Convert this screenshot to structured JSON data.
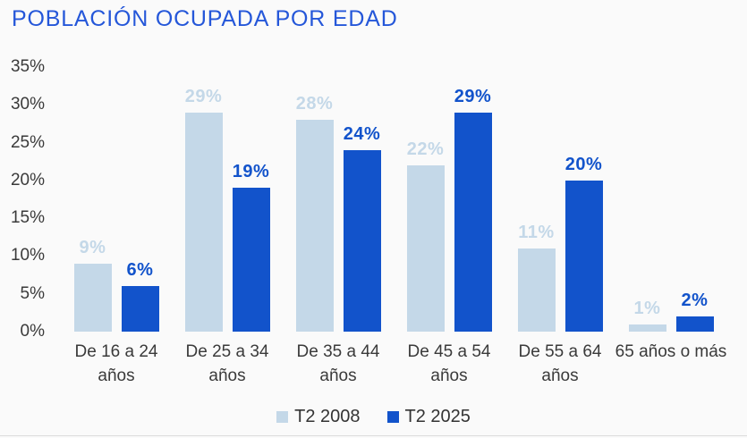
{
  "title": "POBLACIÓN OCUPADA POR EDAD",
  "colors": {
    "title": "#2557d9",
    "series_2008": "#c4d8e8",
    "series_2025": "#1253cb",
    "axis_text": "#3a3a3a",
    "background": "#fafafa",
    "divider": "#dcdcdc"
  },
  "chart_data": {
    "type": "bar",
    "title": "POBLACIÓN OCUPADA POR EDAD",
    "categories": [
      "De 16 a 24 años",
      "De 25 a 34 años",
      "De 35 a 44 años",
      "De 45 a 54 años",
      "De 55 a 64 años",
      "65 años o más"
    ],
    "series": [
      {
        "name": "T2 2008",
        "color": "#c4d8e8",
        "values": [
          9,
          29,
          28,
          22,
          11,
          1
        ]
      },
      {
        "name": "T2 2025",
        "color": "#1253cb",
        "values": [
          6,
          19,
          24,
          29,
          20,
          2
        ]
      }
    ],
    "value_suffix": "%",
    "xlabel": "",
    "ylabel": "",
    "ylim": [
      0,
      35
    ],
    "yticks": [
      0,
      5,
      10,
      15,
      20,
      25,
      30,
      35
    ],
    "ytick_suffix": "%",
    "grid": false,
    "legend_position": "bottom",
    "legend": [
      "T2 2008",
      "T2 2025"
    ]
  }
}
